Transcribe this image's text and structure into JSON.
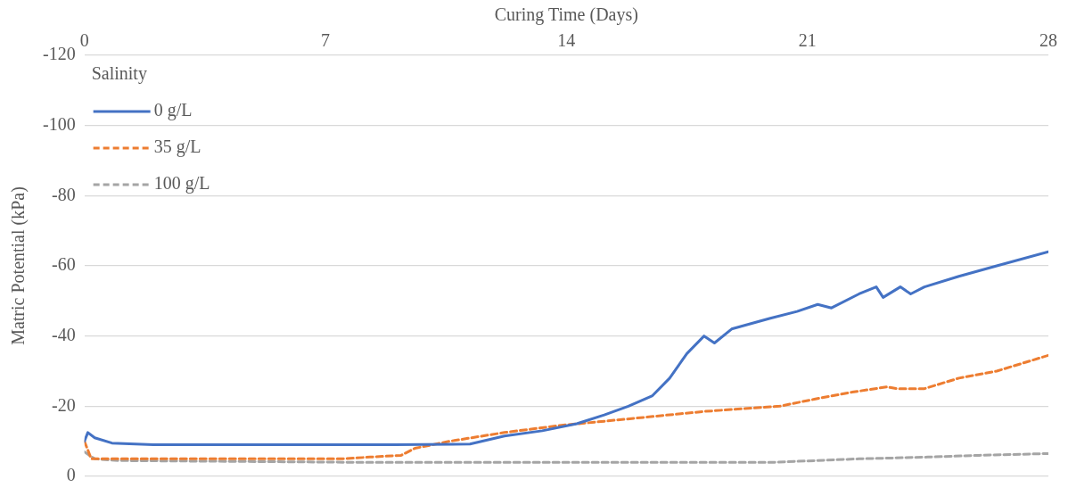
{
  "chart_data": {
    "type": "line",
    "xlabel": "Curing Time (Days)",
    "ylabel": "Matric Potential (kPa)",
    "legend_title": "Salinity",
    "legend": "top left",
    "grid": "y",
    "marker": "none",
    "xlim": [
      0,
      28
    ],
    "xticks": [
      0,
      7,
      14,
      21,
      28
    ],
    "ylim": [
      0,
      -120
    ],
    "yticks": [
      0,
      -20,
      -40,
      -60,
      -80,
      -100,
      -120
    ],
    "series": [
      {
        "name": "0 g/L",
        "color": "#4472c4",
        "line_style": "solid",
        "x": [
          0,
          0.1,
          0.3,
          0.8,
          2,
          5,
          9,
          11.2,
          12.2,
          13.3,
          14.3,
          15.1,
          15.8,
          16.5,
          17,
          17.5,
          18,
          18.3,
          18.8,
          19.9,
          20.7,
          21.3,
          21.7,
          22.5,
          23,
          23.2,
          23.7,
          24,
          24.4,
          25.4,
          26.5,
          28
        ],
        "values": [
          -10,
          -12.5,
          -11,
          -9.5,
          -9,
          -9,
          -9,
          -9.2,
          -11.5,
          -13,
          -15,
          -17.5,
          -20,
          -23,
          -28,
          -35,
          -40,
          -38,
          -42,
          -45,
          -47,
          -49,
          -48,
          -52,
          -54,
          -51,
          -54,
          -52,
          -54,
          -57,
          -60,
          -64
        ]
      },
      {
        "name": "35 g/L",
        "color": "#ed7d31",
        "line_style": "dashed",
        "x": [
          0,
          0.2,
          1,
          4,
          7.5,
          8.3,
          9.2,
          9.6,
          10.6,
          12.2,
          13.8,
          15.4,
          18,
          20.2,
          21.2,
          22.3,
          23.3,
          23.6,
          24.4,
          25.4,
          26.5,
          28
        ],
        "values": [
          -10,
          -5,
          -5,
          -5,
          -5,
          -5.5,
          -6,
          -8,
          -10,
          -12.5,
          -14.5,
          -16,
          -18.5,
          -20,
          -22,
          -24,
          -25.5,
          -25,
          -25,
          -28,
          -30,
          -34.5
        ]
      },
      {
        "name": "100 g/L",
        "color": "#a5a5a5",
        "line_style": "dashed",
        "x": [
          0,
          0.3,
          1,
          8,
          20,
          22.5,
          24.5,
          26,
          28
        ],
        "values": [
          -7,
          -5,
          -4.5,
          -4,
          -4,
          -5,
          -5.5,
          -6,
          -6.5
        ]
      }
    ]
  }
}
